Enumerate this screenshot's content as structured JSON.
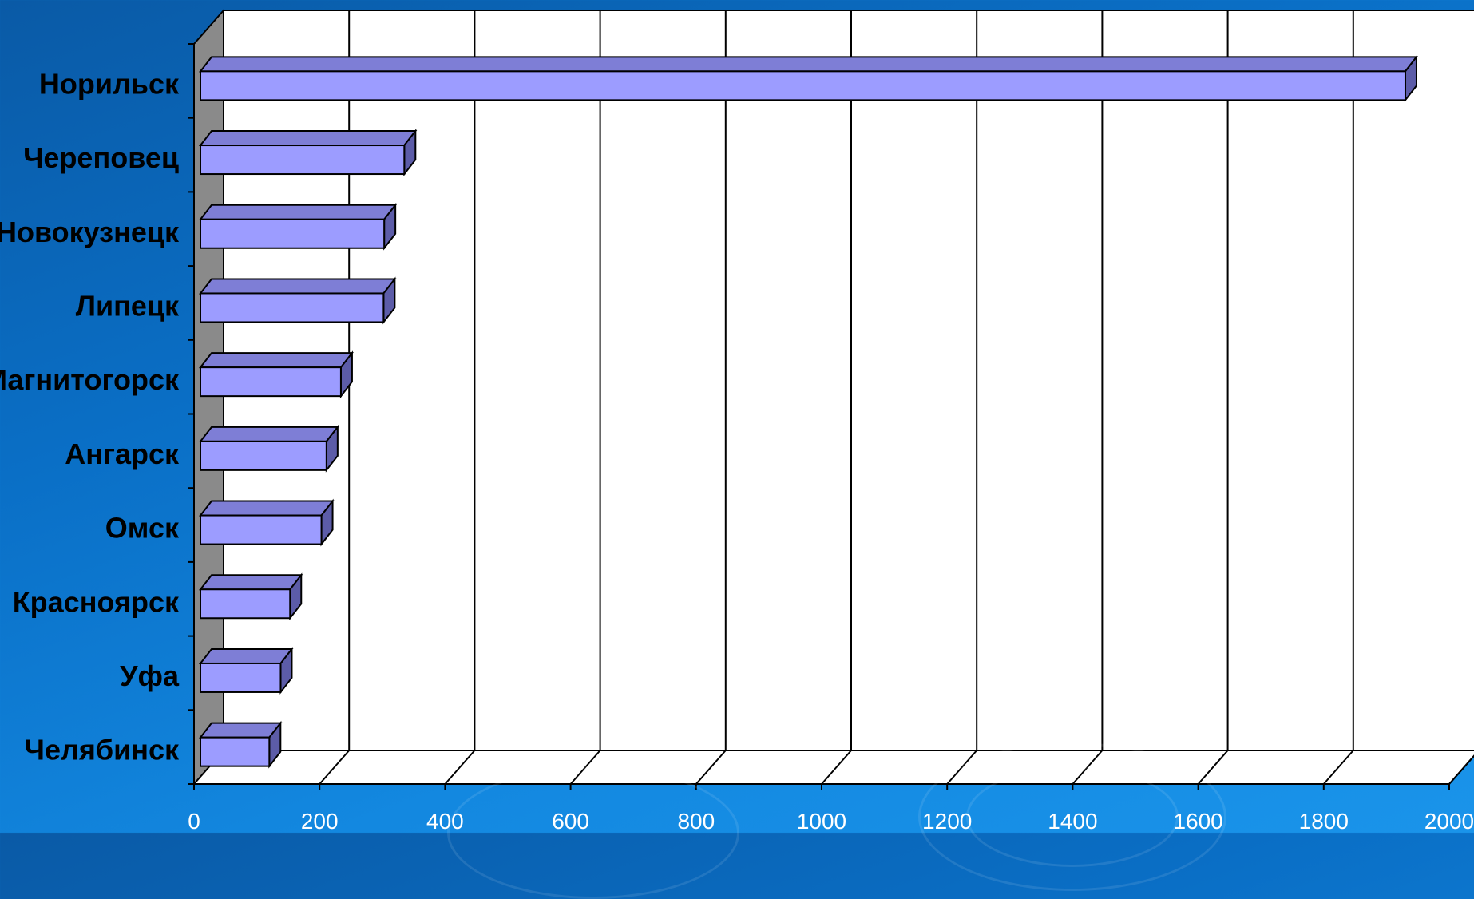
{
  "colors": {
    "background": "#0b6cc4",
    "plot_back": "#ffffff",
    "side_wall": "#8a8a8a",
    "bar_front": "#9c9cff",
    "bar_top": "#7e7ed6",
    "bar_side": "#5c5ca8",
    "gridline": "#000000",
    "tick_text": "#ffffff",
    "category_text": "#000000"
  },
  "chart_data": {
    "type": "bar",
    "orientation": "horizontal",
    "style": "3d",
    "categories": [
      "Норильск",
      "Череповец",
      "Новокузнецк",
      "Липецк",
      "Магнитогорск",
      "Ангарск",
      "Омск",
      "Красноярск",
      "Уфа",
      "Челябинск"
    ],
    "values": [
      1930,
      335,
      303,
      302,
      234,
      211,
      203,
      153,
      138,
      120
    ],
    "xlim": [
      0,
      2000
    ],
    "xticks": [
      "0",
      "200",
      "400",
      "600",
      "800",
      "1000",
      "1200",
      "1400",
      "1600",
      "1800",
      "2000"
    ],
    "grid": true,
    "legend": "none"
  }
}
